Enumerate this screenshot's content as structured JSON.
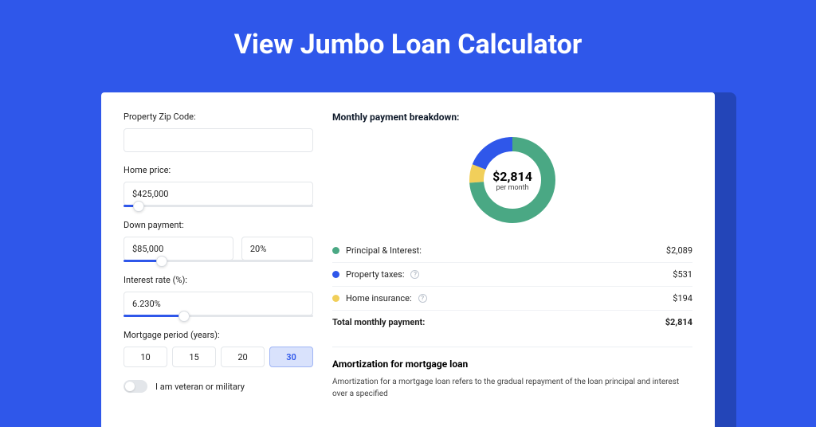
{
  "page": {
    "title": "View Jumbo Loan Calculator",
    "bg_color": "#2f57ea",
    "shadow_color": "#2345b8"
  },
  "form": {
    "zip": {
      "label": "Property Zip Code:",
      "value": ""
    },
    "home_price": {
      "label": "Home price:",
      "value": "$425,000",
      "slider_pct": 8
    },
    "down_payment": {
      "label": "Down payment:",
      "amount": "$85,000",
      "percent": "20%",
      "slider_pct": 20
    },
    "interest_rate": {
      "label": "Interest rate (%):",
      "value": "6.230%",
      "slider_pct": 32
    },
    "period": {
      "label": "Mortgage period (years):",
      "options": [
        "10",
        "15",
        "20",
        "30"
      ],
      "selected_index": 3
    },
    "veteran": {
      "label": "I am veteran or military",
      "on": false
    }
  },
  "breakdown": {
    "title": "Monthly payment breakdown:",
    "center_amount": "$2,814",
    "center_sub": "per month",
    "items": [
      {
        "label": "Principal & Interest:",
        "value": "$2,089",
        "color": "#4aa884",
        "info": false,
        "pct": 74
      },
      {
        "label": "Property taxes:",
        "value": "$531",
        "color": "#2f57ea",
        "info": true,
        "pct": 19
      },
      {
        "label": "Home insurance:",
        "value": "$194",
        "color": "#f1cf5a",
        "info": true,
        "pct": 7
      }
    ],
    "total_label": "Total monthly payment:",
    "total_value": "$2,814"
  },
  "amortization": {
    "title": "Amortization for mortgage loan",
    "body": "Amortization for a mortgage loan refers to the gradual repayment of the loan principal and interest over a specified"
  }
}
